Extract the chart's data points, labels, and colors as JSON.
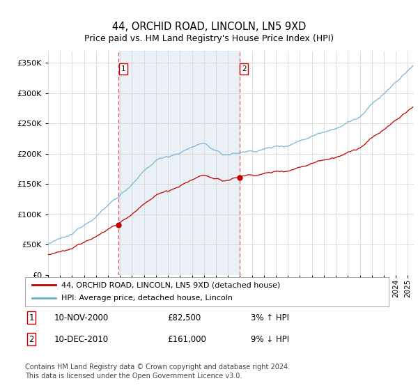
{
  "title": "44, ORCHID ROAD, LINCOLN, LN5 9XD",
  "subtitle": "Price paid vs. HM Land Registry's House Price Index (HPI)",
  "ylim": [
    0,
    370000
  ],
  "yticks": [
    0,
    50000,
    100000,
    150000,
    200000,
    250000,
    300000,
    350000
  ],
  "xlim_start": 1995.0,
  "xlim_end": 2025.5,
  "purchase1_x": 2000.87,
  "purchase1_y": 82500,
  "purchase2_x": 2010.95,
  "purchase2_y": 161000,
  "legend_line1": "44, ORCHID ROAD, LINCOLN, LN5 9XD (detached house)",
  "legend_line2": "HPI: Average price, detached house, Lincoln",
  "annotation1_label": "1",
  "annotation2_label": "2",
  "table_row1_num": "1",
  "table_row1_date": "10-NOV-2000",
  "table_row1_price": "£82,500",
  "table_row1_hpi": "3% ↑ HPI",
  "table_row2_num": "2",
  "table_row2_date": "10-DEC-2010",
  "table_row2_price": "£161,000",
  "table_row2_hpi": "9% ↓ HPI",
  "footnote1": "Contains HM Land Registry data © Crown copyright and database right 2024.",
  "footnote2": "This data is licensed under the Open Government Licence v3.0.",
  "hpi_color": "#6baed6",
  "price_color": "#c00000",
  "vline_color": "#e05050",
  "background_shade": "#dce6f1",
  "grid_color": "#d0d0d0",
  "title_fontsize": 10.5,
  "subtitle_fontsize": 9,
  "axis_fontsize": 8,
  "legend_fontsize": 8,
  "table_fontsize": 8.5,
  "footnote_fontsize": 7
}
